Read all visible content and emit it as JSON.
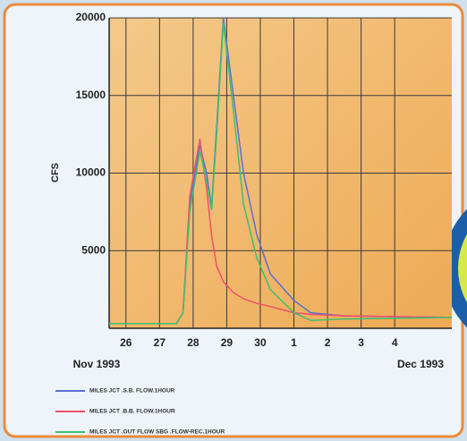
{
  "chart_data": {
    "type": "line",
    "y_label": "CFS",
    "x_group_labels": [
      "Nov 1993",
      "Dec 1993"
    ],
    "x": [
      -0.5,
      1.5,
      1.7,
      1.9,
      2.2,
      2.4,
      2.55,
      2.7,
      2.9,
      3.2,
      3.5,
      3.9,
      4.3,
      5,
      5.5,
      6.5,
      9.7
    ],
    "series": [
      {
        "name": "MILES JCT .S.B. FLOW.1HOUR",
        "color": "#5a6fd0",
        "values": [
          300,
          300,
          1000,
          8000,
          11800,
          10000,
          7800,
          13000,
          20000,
          15000,
          10000,
          6000,
          3500,
          1800,
          1000,
          800,
          700
        ]
      },
      {
        "name": "MILES JCT .B.B. FLOW.1HOUR",
        "color": "#f0506a",
        "values": [
          300,
          300,
          1000,
          8500,
          12200,
          9000,
          6000,
          4000,
          3000,
          2300,
          1900,
          1600,
          1400,
          1000,
          900,
          800,
          700
        ]
      },
      {
        "name": "MILES JCT .OUT FLOW SBG .FLOW-REC.1HOUR",
        "color": "#3cc070",
        "values": [
          300,
          300,
          1000,
          7500,
          11400,
          9500,
          7600,
          12500,
          19700,
          14000,
          8000,
          4500,
          2500,
          1000,
          500,
          600,
          700
        ]
      }
    ],
    "xlim": [
      -0.5,
      9.7
    ],
    "xticks": [
      {
        "value": 0,
        "label": "26"
      },
      {
        "value": 1,
        "label": "27"
      },
      {
        "value": 2,
        "label": "28"
      },
      {
        "value": 3,
        "label": "29"
      },
      {
        "value": 4,
        "label": "30"
      },
      {
        "value": 5,
        "label": "1"
      },
      {
        "value": 6,
        "label": "2"
      },
      {
        "value": 7,
        "label": "3"
      },
      {
        "value": 8,
        "label": "4"
      }
    ],
    "ylim": [
      0,
      20000
    ],
    "yticks": [
      5000,
      10000,
      15000,
      20000
    ],
    "grid": true
  }
}
